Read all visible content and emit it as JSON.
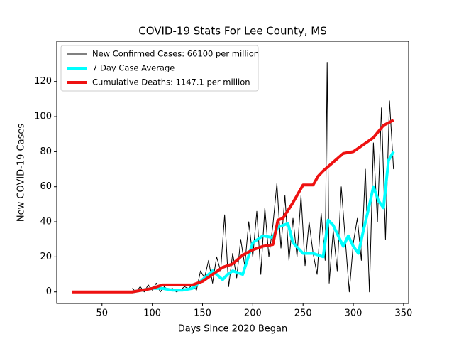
{
  "chart_data": {
    "type": "line",
    "title": "COVID-19 Stats For Lee County, MS",
    "xlabel": "Days Since 2020 Began",
    "ylabel": "New COVID-19 Cases",
    "xlim": [
      5,
      355
    ],
    "ylim": [
      -6.6,
      143
    ],
    "xticks": [
      50,
      100,
      150,
      200,
      250,
      300,
      350
    ],
    "yticks": [
      0,
      20,
      40,
      60,
      80,
      100,
      120
    ],
    "legend": "upper left",
    "series": [
      {
        "name": "New Confirmed Cases: 66100 per million",
        "color": "#000000",
        "width": 1,
        "x": [
          80,
          84,
          88,
          92,
          96,
          100,
          104,
          108,
          112,
          116,
          120,
          124,
          128,
          132,
          136,
          140,
          144,
          148,
          152,
          156,
          160,
          164,
          168,
          172,
          176,
          180,
          184,
          188,
          192,
          196,
          200,
          204,
          208,
          212,
          216,
          220,
          224,
          228,
          232,
          236,
          240,
          244,
          248,
          252,
          256,
          260,
          264,
          268,
          272,
          274,
          276,
          280,
          284,
          288,
          292,
          296,
          300,
          304,
          308,
          312,
          316,
          320,
          324,
          328,
          332,
          336,
          340
        ],
        "values": [
          2,
          0,
          3,
          0,
          4,
          1,
          5,
          0,
          3,
          1,
          2,
          0,
          1,
          3,
          2,
          4,
          1,
          12,
          8,
          18,
          5,
          20,
          12,
          44,
          3,
          22,
          8,
          30,
          15,
          40,
          20,
          46,
          10,
          48,
          20,
          38,
          62,
          25,
          55,
          18,
          42,
          20,
          55,
          15,
          40,
          22,
          10,
          45,
          18,
          131,
          5,
          35,
          12,
          60,
          30,
          0,
          28,
          42,
          18,
          70,
          0,
          85,
          40,
          105,
          30,
          109,
          70
        ]
      },
      {
        "name": "7 Day Case Average",
        "color": "#00ffff",
        "width": 4,
        "x": [
          80,
          90,
          100,
          110,
          120,
          130,
          140,
          150,
          160,
          170,
          175,
          180,
          190,
          200,
          210,
          220,
          225,
          235,
          240,
          250,
          260,
          270,
          275,
          280,
          290,
          295,
          300,
          305,
          310,
          315,
          320,
          325,
          330,
          335,
          340
        ],
        "values": [
          0,
          1,
          2,
          2,
          1,
          1,
          2,
          7,
          12,
          7,
          10,
          12,
          10,
          28,
          32,
          31,
          37,
          39,
          28,
          22,
          22,
          20,
          41,
          38,
          26,
          32,
          26,
          22,
          35,
          47,
          60,
          52,
          48,
          75,
          80
        ]
      },
      {
        "name": "Cumulative Deaths: 1147.1 per million",
        "color": "#ee1111",
        "width": 4,
        "x": [
          20,
          30,
          40,
          50,
          60,
          70,
          80,
          90,
          100,
          110,
          120,
          130,
          140,
          150,
          160,
          170,
          180,
          190,
          200,
          210,
          220,
          225,
          230,
          240,
          250,
          260,
          265,
          270,
          280,
          290,
          300,
          310,
          320,
          330,
          340
        ],
        "values": [
          0,
          0,
          0,
          0,
          0,
          0,
          0,
          1,
          2,
          4,
          4,
          4,
          4,
          6,
          10,
          14,
          16,
          21,
          24,
          26,
          27,
          41,
          42,
          51,
          61,
          61,
          66,
          69,
          74,
          79,
          80,
          84,
          88,
          95,
          98
        ]
      }
    ]
  }
}
